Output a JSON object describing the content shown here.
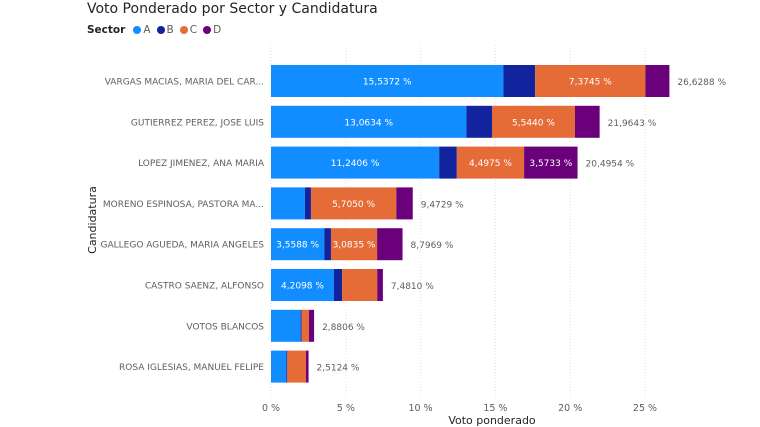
{
  "chart_data": {
    "type": "bar",
    "orientation": "horizontal",
    "stacked": true,
    "title": "Voto Ponderado por Sector y Candidatura",
    "legend_title": "Sector",
    "legend_position": "top-left",
    "xlabel": "Voto ponderado",
    "ylabel": "Candidatura",
    "xlim": [
      0,
      27
    ],
    "x_ticks": [
      "0 %",
      "5 %",
      "10 %",
      "15 %",
      "20 %",
      "25 %"
    ],
    "grid": true,
    "categories": [
      "VARGAS MACIAS, MARIA DEL CAR...",
      "GUTIERREZ PEREZ, JOSE LUIS",
      "LOPEZ JIMENEZ, ANA MARIA",
      "MORENO ESPINOSA, PASTORA MA...",
      "GALLEGO AGUEDA, MARIA ANGELES",
      "CASTRO SAENZ, ALFONSO",
      "VOTOS BLANCOS",
      "ROSA IGLESIAS, MANUEL FELIPE"
    ],
    "series": [
      {
        "name": "A",
        "color": "#118DFF",
        "values": [
          15.5372,
          13.0634,
          11.2406,
          2.27,
          3.5588,
          4.2098,
          1.98,
          1.02
        ],
        "labels": [
          "15,5372 %",
          "13,0634 %",
          "11,2406 %",
          "",
          "3,5588 %",
          "4,2098 %",
          "",
          ""
        ]
      },
      {
        "name": "B",
        "color": "#12239E",
        "values": [
          2.12,
          1.71,
          1.18,
          0.4,
          0.45,
          0.54,
          0.07,
          0.07
        ],
        "labels": [
          "",
          "",
          "",
          "",
          "",
          "",
          "",
          ""
        ]
      },
      {
        "name": "C",
        "color": "#E66C37",
        "values": [
          7.3745,
          5.544,
          4.4975,
          5.705,
          3.0835,
          2.35,
          0.49,
          1.25
        ],
        "labels": [
          "7,3745 %",
          "5,5440 %",
          "4,4975 %",
          "5,7050 %",
          "3,0835 %",
          "",
          "",
          ""
        ]
      },
      {
        "name": "D",
        "color": "#6B007B",
        "values": [
          1.6,
          1.65,
          3.5733,
          1.1,
          1.7,
          0.38,
          0.34,
          0.17
        ],
        "labels": [
          "",
          "",
          "3,5733 %",
          "",
          "",
          "",
          "",
          ""
        ]
      }
    ],
    "totals": [
      "26,6288 %",
      "21,9643 %",
      "20,4954 %",
      "9,4729 %",
      "8,7969 %",
      "7,4810 %",
      "2,8806 %",
      "2,5124 %"
    ]
  }
}
